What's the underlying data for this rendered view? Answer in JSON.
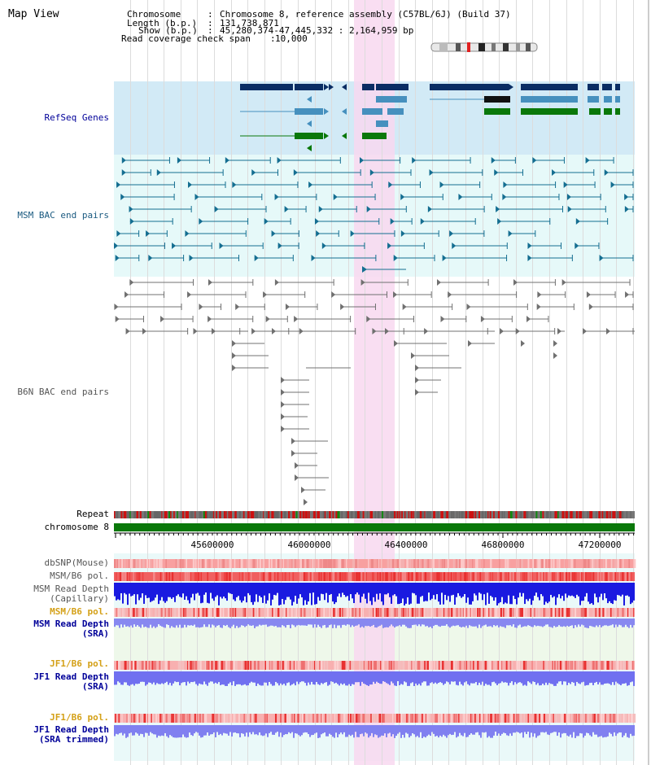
{
  "page": {
    "title": "Map View"
  },
  "header": {
    "chromosome": {
      "key": "Chromosome",
      "value": "Chromosome 8, reference assembly (C57BL/6J) (Build 37)"
    },
    "length": {
      "key": "Length (b.p.)",
      "value": "131,738,871"
    },
    "show": {
      "key": "Show (b.p.)",
      "value": "45,280,374-47,445,332 : 2,164,959 bp"
    },
    "read_coverage": {
      "key": "Read coverage check span",
      "value": "10,000"
    }
  },
  "tracks": {
    "refseq": "RefSeq Genes",
    "msm_bac": "MSM BAC end pairs",
    "b6n_bac": "B6N BAC end pairs",
    "repeat": "Repeat",
    "chromosome": "chromosome 8",
    "dbsnp": "dbSNP(Mouse)",
    "msm_b6_pol_1": "MSM/B6 pol.",
    "msm_read_depth_cap_1": "MSM Read Depth",
    "msm_read_depth_cap_2": "(Capillary)",
    "msm_b6_pol_2": "MSM/B6 pol.",
    "msm_read_depth_sra_1": "MSM Read Depth",
    "msm_read_depth_sra_2": "(SRA)",
    "jf1_b6_pol_1": "JF1/B6 pol.",
    "jf1_read_depth_sra_1": "JF1 Read Depth",
    "jf1_read_depth_sra_2": "(SRA)",
    "jf1_b6_pol_2": "JF1/B6 pol.",
    "jf1_read_depth_trim_1": "JF1 Read Depth",
    "jf1_read_depth_trim_2": "(SRA trimmed)"
  },
  "axis": {
    "ticks": [
      "45600000",
      "46000000",
      "46400000",
      "46800000",
      "47200000"
    ]
  },
  "colors": {
    "refseq_bg": "#cfe8f5",
    "msm_bg": "#e4f8f8",
    "highlight": "#f8d8f0",
    "dark_gene": "#0a2d64",
    "mid_gene": "#4690be",
    "green_gene": "#0a780a",
    "msm_line": "#146e91",
    "b6n_line": "#606060",
    "label_blue": "#000099",
    "label_teal": "#1a5a80",
    "label_grey": "#555555",
    "label_orange": "#d4a017"
  }
}
